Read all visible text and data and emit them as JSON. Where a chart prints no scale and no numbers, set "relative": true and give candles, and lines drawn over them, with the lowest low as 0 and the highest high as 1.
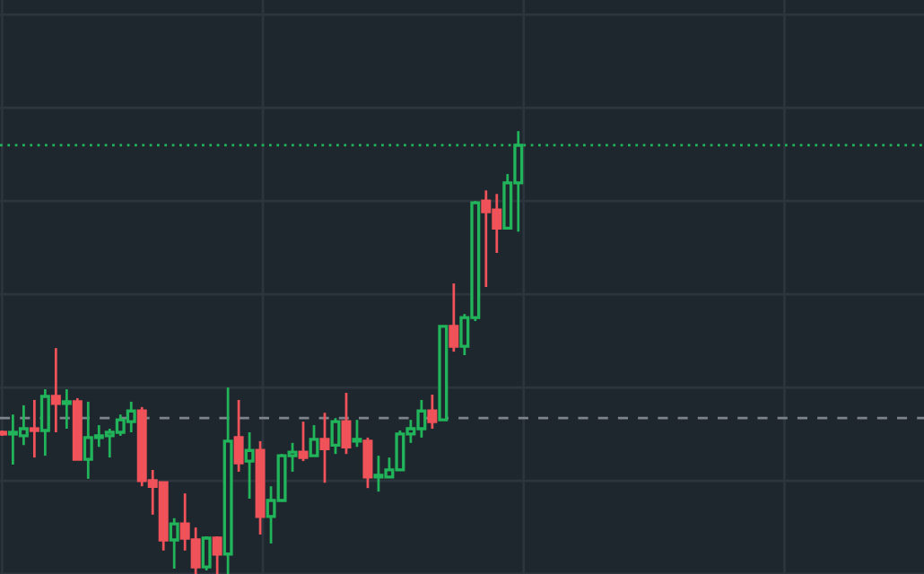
{
  "chart_data": {
    "type": "candlestick",
    "relative": true,
    "grid": true,
    "categories": [
      null,
      null,
      null,
      null,
      null,
      null,
      null,
      null,
      null,
      null,
      null,
      null,
      null,
      null,
      null,
      null,
      null,
      null,
      null,
      null,
      null,
      null,
      null,
      null,
      null,
      null,
      null,
      null,
      null,
      null,
      null,
      null,
      null,
      null,
      null,
      null,
      null,
      null,
      null,
      null,
      null,
      null,
      null,
      null,
      null,
      null,
      null,
      null,
      null
    ],
    "ohlc": [
      [
        0.32,
        0.324,
        0.312,
        0.316
      ],
      [
        0.316,
        0.36,
        0.247,
        0.32
      ],
      [
        0.312,
        0.381,
        0.291,
        0.328
      ],
      [
        0.328,
        0.393,
        0.263,
        0.324
      ],
      [
        0.324,
        0.417,
        0.267,
        0.401
      ],
      [
        0.401,
        0.51,
        0.32,
        0.385
      ],
      [
        0.385,
        0.417,
        0.328,
        0.389
      ],
      [
        0.389,
        0.397,
        0.259,
        0.259
      ],
      [
        0.259,
        0.389,
        0.215,
        0.308
      ],
      [
        0.308,
        0.336,
        0.287,
        0.312
      ],
      [
        0.312,
        0.328,
        0.263,
        0.32
      ],
      [
        0.32,
        0.36,
        0.312,
        0.348
      ],
      [
        0.344,
        0.389,
        0.32,
        0.368
      ],
      [
        0.368,
        0.377,
        0.198,
        0.211
      ],
      [
        0.211,
        0.235,
        0.134,
        0.198
      ],
      [
        0.206,
        0.206,
        0.053,
        0.077
      ],
      [
        0.077,
        0.126,
        0.012,
        0.113
      ],
      [
        0.113,
        0.182,
        0.053,
        0.081
      ],
      [
        0.077,
        0.105,
        0,
        0.016
      ],
      [
        0.016,
        0.085,
        0.008,
        0.081
      ],
      [
        0.081,
        0.085,
        0,
        0.045
      ],
      [
        0.045,
        0.421,
        0,
        0.3
      ],
      [
        0.308,
        0.393,
        0.231,
        0.251
      ],
      [
        0.255,
        0.32,
        0.17,
        0.279
      ],
      [
        0.279,
        0.3,
        0.089,
        0.13
      ],
      [
        0.13,
        0.198,
        0.069,
        0.166
      ],
      [
        0.166,
        0.271,
        0.166,
        0.267
      ],
      [
        0.267,
        0.296,
        0.231,
        0.275
      ],
      [
        0.275,
        0.344,
        0.255,
        0.263
      ],
      [
        0.267,
        0.336,
        0.267,
        0.304
      ],
      [
        0.304,
        0.364,
        0.206,
        0.283
      ],
      [
        0.291,
        0.352,
        0.271,
        0.344
      ],
      [
        0.344,
        0.409,
        0.271,
        0.287
      ],
      [
        0.3,
        0.348,
        0.287,
        0.304
      ],
      [
        0.3,
        0.308,
        0.194,
        0.219
      ],
      [
        0.219,
        0.267,
        0.186,
        0.223
      ],
      [
        0.219,
        0.263,
        0.219,
        0.235
      ],
      [
        0.235,
        0.324,
        0.235,
        0.316
      ],
      [
        0.316,
        0.348,
        0.296,
        0.328
      ],
      [
        0.328,
        0.393,
        0.308,
        0.368
      ],
      [
        0.368,
        0.405,
        0.328,
        0.344
      ],
      [
        0.348,
        0.559,
        0.348,
        0.559
      ],
      [
        0.559,
        0.656,
        0.502,
        0.514
      ],
      [
        0.514,
        0.587,
        0.494,
        0.579
      ],
      [
        0.579,
        0.842,
        0.571,
        0.838
      ],
      [
        0.842,
        0.866,
        0.648,
        0.818
      ],
      [
        0.822,
        0.858,
        0.725,
        0.781
      ],
      [
        0.781,
        0.903,
        0.781,
        0.883
      ],
      [
        0.883,
        1.0,
        0.773,
        0.968
      ]
    ],
    "colors": [
      "#f0525a",
      "#22b45a",
      "#22b45a",
      "#f0525a",
      "#22b45a",
      "#f0525a",
      "#22b45a",
      "#f0525a",
      "#22b45a",
      "#22b45a",
      "#22b45a",
      "#22b45a",
      "#22b45a",
      "#f0525a",
      "#f0525a",
      "#f0525a",
      "#22b45a",
      "#f0525a",
      "#f0525a",
      "#22b45a",
      "#f0525a",
      "#22b45a",
      "#f0525a",
      "#22b45a",
      "#f0525a",
      "#22b45a",
      "#22b45a",
      "#22b45a",
      "#f0525a",
      "#22b45a",
      "#f0525a",
      "#22b45a",
      "#f0525a",
      "#22b45a",
      "#f0525a",
      "#22b45a",
      "#22b45a",
      "#22b45a",
      "#22b45a",
      "#22b45a",
      "#f0525a",
      "#22b45a",
      "#f0525a",
      "#22b45a",
      "#22b45a",
      "#f0525a",
      "#f0525a",
      "#22b45a",
      "#22b45a"
    ],
    "ref_lines": [
      {
        "axis": "y",
        "value": 0.352,
        "color": "#7d848c",
        "line_style": "dashed"
      },
      {
        "axis": "y",
        "value": 0.968,
        "color": "#22b45a",
        "line_style": "dotted"
      }
    ]
  }
}
